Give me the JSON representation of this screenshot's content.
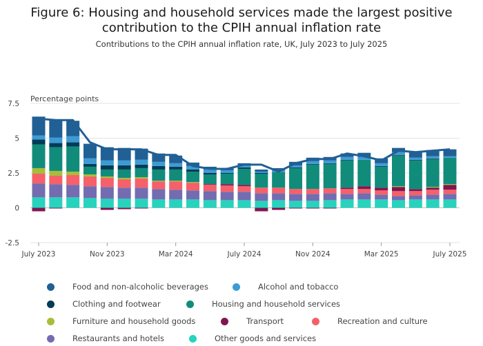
{
  "chart_data": {
    "type": "bar",
    "stacked": true,
    "title": "Figure 6: Housing and household services made the largest positive contribution to the CPIH annual inflation rate",
    "subtitle": "Contributions to the CPIH annual inflation rate, UK, July 2023 to July 2025",
    "ylabel": "Percentage points",
    "ylim": [
      -2.5,
      7.5
    ],
    "yticks": [
      7.5,
      5,
      2.5,
      0,
      -2.5
    ],
    "ytick_labels": [
      "7.5",
      "5",
      "2.5",
      "0",
      "-2.5"
    ],
    "grid": true,
    "legend_position": "bottom",
    "categories": [
      "July 2023",
      "Aug 2023",
      "Sep 2023",
      "Oct 2023",
      "Nov 2023",
      "Dec 2023",
      "Jan 2024",
      "Feb 2024",
      "Mar 2024",
      "Apr 2024",
      "May 2024",
      "Jun 2024",
      "July 2024",
      "Aug 2024",
      "Sep 2024",
      "Oct 2024",
      "Nov 2024",
      "Dec 2024",
      "Jan 2025",
      "Feb 2025",
      "Mar 2025",
      "Apr 2025",
      "May 2025",
      "Jun 2025",
      "July 2025"
    ],
    "x_tick_labels": [
      "July 2023",
      "Nov 2023",
      "Mar 2024",
      "July 2024",
      "Nov 2024",
      "Mar 2025",
      "July 2025"
    ],
    "x_tick_indices": [
      0,
      4,
      8,
      12,
      16,
      20,
      24
    ],
    "series": [
      {
        "name": "Other goods and services",
        "color": "#27d3bd",
        "values": [
          0.75,
          0.75,
          0.75,
          0.7,
          0.65,
          0.65,
          0.65,
          0.6,
          0.6,
          0.6,
          0.55,
          0.55,
          0.55,
          0.5,
          0.55,
          0.5,
          0.5,
          0.55,
          0.6,
          0.6,
          0.6,
          0.55,
          0.6,
          0.6,
          0.6
        ]
      },
      {
        "name": "Restaurants and hotels",
        "color": "#746cb1",
        "values": [
          1.0,
          0.95,
          0.9,
          0.85,
          0.85,
          0.8,
          0.8,
          0.75,
          0.7,
          0.65,
          0.65,
          0.6,
          0.6,
          0.55,
          0.5,
          0.5,
          0.5,
          0.5,
          0.4,
          0.45,
          0.35,
          0.3,
          0.3,
          0.35,
          0.4
        ]
      },
      {
        "name": "Recreation and culture",
        "color": "#f66068",
        "values": [
          0.7,
          0.6,
          0.7,
          0.7,
          0.65,
          0.6,
          0.65,
          0.55,
          0.6,
          0.55,
          0.45,
          0.45,
          0.4,
          0.4,
          0.4,
          0.35,
          0.35,
          0.35,
          0.35,
          0.3,
          0.3,
          0.35,
          0.3,
          0.35,
          0.3
        ]
      },
      {
        "name": "Transport",
        "color": "#801650",
        "values": [
          -0.25,
          -0.05,
          0.0,
          0.0,
          -0.15,
          -0.1,
          -0.05,
          0.0,
          0.0,
          0.0,
          0.05,
          0.1,
          0.1,
          -0.25,
          -0.15,
          -0.05,
          -0.05,
          -0.05,
          0.1,
          0.2,
          0.2,
          0.3,
          0.15,
          0.15,
          0.35
        ]
      },
      {
        "name": "Furniture and household goods",
        "color": "#a8bd3a",
        "values": [
          0.4,
          0.35,
          0.25,
          0.15,
          0.1,
          0.1,
          0.1,
          0.05,
          0.05,
          0.05,
          0.0,
          0.0,
          0.0,
          0.0,
          0.0,
          0.0,
          0.0,
          0.0,
          0.0,
          0.0,
          0.0,
          0.05,
          0.0,
          0.05,
          0.05
        ]
      },
      {
        "name": "Housing and household services",
        "color": "#118c7b",
        "values": [
          1.7,
          1.7,
          1.8,
          0.55,
          0.5,
          0.6,
          0.65,
          0.8,
          0.8,
          0.75,
          0.7,
          0.75,
          1.15,
          1.0,
          1.1,
          1.5,
          1.75,
          1.75,
          1.95,
          1.9,
          1.5,
          2.2,
          2.05,
          2.0,
          1.9
        ]
      },
      {
        "name": "Clothing and footwear",
        "color": "#003c57",
        "values": [
          0.35,
          0.3,
          0.3,
          0.2,
          0.3,
          0.3,
          0.25,
          0.25,
          0.2,
          0.15,
          0.1,
          0.05,
          0.1,
          0.05,
          0.0,
          0.05,
          0.05,
          0.05,
          0.05,
          0.0,
          0.05,
          0.05,
          0.05,
          0.05,
          0.0
        ]
      },
      {
        "name": "Alcohol and tobacco",
        "color": "#3d9bd4",
        "values": [
          0.3,
          0.4,
          0.45,
          0.4,
          0.35,
          0.35,
          0.35,
          0.3,
          0.25,
          0.25,
          0.25,
          0.2,
          0.15,
          0.1,
          0.15,
          0.15,
          0.2,
          0.2,
          0.2,
          0.2,
          0.2,
          0.2,
          0.15,
          0.15,
          0.1
        ]
      },
      {
        "name": "Food and non-alcoholic beverages",
        "color": "#206095",
        "values": [
          1.35,
          1.3,
          1.1,
          1.05,
          0.95,
          0.9,
          0.8,
          0.6,
          0.55,
          0.25,
          0.2,
          0.15,
          0.15,
          0.15,
          0.15,
          0.25,
          0.25,
          0.25,
          0.25,
          0.3,
          0.35,
          0.3,
          0.4,
          0.45,
          0.5
        ]
      }
    ],
    "line": {
      "name": "CPIH annual rate",
      "color": "#206095",
      "values": [
        6.4,
        6.3,
        6.3,
        4.7,
        4.2,
        4.2,
        4.2,
        3.8,
        3.8,
        3.0,
        2.8,
        2.8,
        3.1,
        3.1,
        2.6,
        3.2,
        3.5,
        3.5,
        3.9,
        3.7,
        3.4,
        4.1,
        4.0,
        4.1,
        4.2
      ]
    }
  },
  "legend": [
    {
      "label": "Food and non-alcoholic beverages",
      "color": "#206095"
    },
    {
      "label": "Alcohol and tobacco",
      "color": "#3d9bd4"
    },
    {
      "label": "Clothing and footwear",
      "color": "#003c57"
    },
    {
      "label": "Housing and household services",
      "color": "#118c7b"
    },
    {
      "label": "Furniture and household goods",
      "color": "#a8bd3a"
    },
    {
      "label": "Transport",
      "color": "#801650"
    },
    {
      "label": "Recreation and culture",
      "color": "#f66068"
    },
    {
      "label": "Restaurants and hotels",
      "color": "#746cb1"
    },
    {
      "label": "Other goods and services",
      "color": "#27d3bd"
    }
  ]
}
